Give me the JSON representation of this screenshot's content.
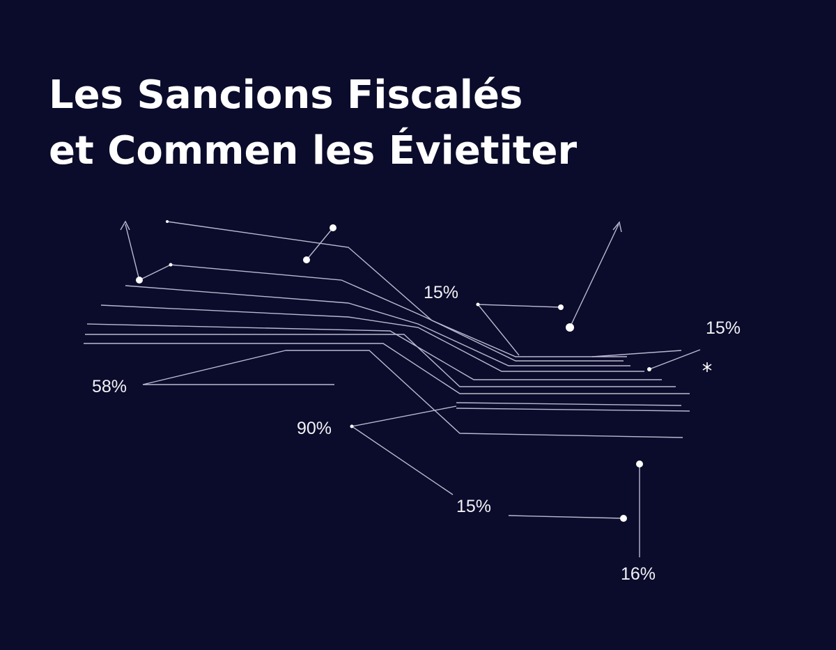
{
  "header": {
    "title": [
      "Les Sancions Fiscalés",
      "et Commen les Évietiter"
    ]
  },
  "labels": [
    "15%",
    "15%",
    "58%",
    "90%",
    "15%",
    "16%"
  ]
}
